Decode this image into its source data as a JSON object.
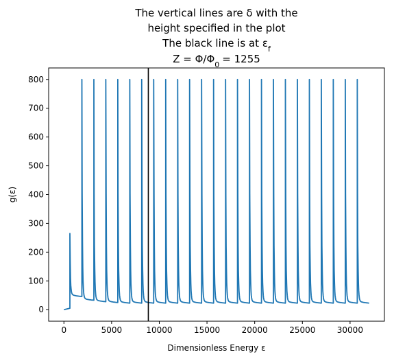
{
  "chart_data": {
    "type": "line",
    "title_lines": [
      "The vertical lines are δ with the",
      "height specified in the plot",
      "The black line is at ε",
      "Z = Φ/Φ"
    ],
    "title_suffixes": [
      "",
      "",
      "f",
      "0"
    ],
    "title_tail": "= 1255",
    "xlabel": "Dimensionless Energy ε",
    "ylabel": "g(ε)",
    "xlim": [
      -1600,
      33600
    ],
    "ylim": [
      -40,
      840
    ],
    "xticks": [
      0,
      5000,
      10000,
      15000,
      20000,
      25000,
      30000
    ],
    "yticks": [
      0,
      100,
      200,
      300,
      400,
      500,
      600,
      700,
      800
    ],
    "series": [
      {
        "color": "#1f77b4",
        "x_start": 0,
        "x_end": 32000,
        "initial_segment": {
          "x": [
            0,
            628
          ],
          "y": [
            0,
            5
          ]
        },
        "first_peak": {
          "x": 628,
          "y": 265
        },
        "peak_x": [
          1883,
          3138,
          4394,
          5649,
          6904,
          8159,
          9414,
          10670,
          11925,
          13180,
          14435,
          15690,
          16946,
          18201,
          19456,
          20711,
          21966,
          23222,
          24477,
          25732,
          26987,
          28242,
          29498,
          30753
        ],
        "peak_height": 800,
        "floor_values": [
          40,
          27,
          22,
          19,
          17
        ]
      }
    ],
    "vertical_line": {
      "x": 8850,
      "color": "#000000",
      "label": "εf"
    }
  }
}
